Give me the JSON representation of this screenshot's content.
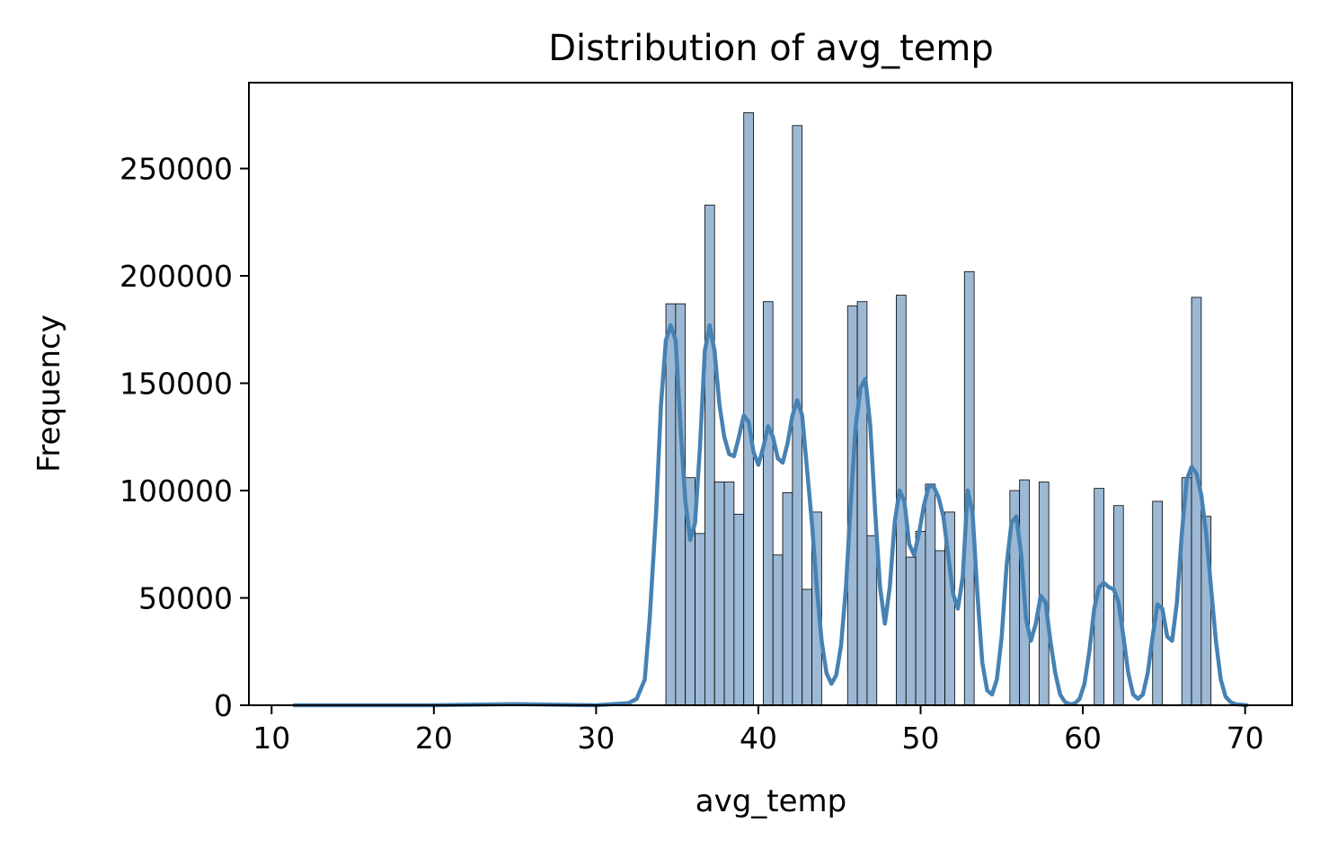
{
  "chart_data": {
    "type": "bar",
    "title": "Distribution of avg_temp",
    "xlabel": "avg_temp",
    "ylabel": "Frequency",
    "xlim": [
      8.6,
      72.9
    ],
    "ylim": [
      0,
      290000
    ],
    "xticks": [
      10,
      20,
      30,
      40,
      50,
      60,
      70
    ],
    "yticks": [
      0,
      50000,
      100000,
      150000,
      200000,
      250000
    ],
    "grid": false,
    "legend": "none",
    "colors": {
      "bar_fill": "#9cb8d4",
      "bar_edge": "#000000",
      "kde_line": "#4682b4"
    },
    "histogram": {
      "bins": [
        {
          "x0": 34.3,
          "x1": 34.9,
          "count": 187000
        },
        {
          "x0": 34.9,
          "x1": 35.5,
          "count": 187000
        },
        {
          "x0": 35.5,
          "x1": 36.1,
          "count": 106000
        },
        {
          "x0": 36.1,
          "x1": 36.7,
          "count": 80000
        },
        {
          "x0": 36.7,
          "x1": 37.3,
          "count": 233000
        },
        {
          "x0": 37.3,
          "x1": 37.9,
          "count": 104000
        },
        {
          "x0": 37.9,
          "x1": 38.5,
          "count": 104000
        },
        {
          "x0": 38.5,
          "x1": 39.1,
          "count": 89000
        },
        {
          "x0": 39.1,
          "x1": 39.7,
          "count": 276000
        },
        {
          "x0": 40.3,
          "x1": 40.9,
          "count": 188000
        },
        {
          "x0": 40.9,
          "x1": 41.5,
          "count": 70000
        },
        {
          "x0": 41.5,
          "x1": 42.1,
          "count": 99000
        },
        {
          "x0": 42.1,
          "x1": 42.7,
          "count": 270000
        },
        {
          "x0": 42.7,
          "x1": 43.3,
          "count": 54000
        },
        {
          "x0": 43.3,
          "x1": 43.9,
          "count": 90000
        },
        {
          "x0": 45.5,
          "x1": 46.1,
          "count": 186000
        },
        {
          "x0": 46.1,
          "x1": 46.7,
          "count": 188000
        },
        {
          "x0": 46.7,
          "x1": 47.3,
          "count": 79000
        },
        {
          "x0": 48.5,
          "x1": 49.1,
          "count": 191000
        },
        {
          "x0": 49.1,
          "x1": 49.7,
          "count": 69000
        },
        {
          "x0": 49.7,
          "x1": 50.3,
          "count": 81000
        },
        {
          "x0": 50.3,
          "x1": 50.9,
          "count": 103000
        },
        {
          "x0": 50.9,
          "x1": 51.5,
          "count": 72000
        },
        {
          "x0": 51.5,
          "x1": 52.1,
          "count": 90000
        },
        {
          "x0": 52.7,
          "x1": 53.3,
          "count": 202000
        },
        {
          "x0": 55.5,
          "x1": 56.1,
          "count": 100000
        },
        {
          "x0": 56.1,
          "x1": 56.7,
          "count": 105000
        },
        {
          "x0": 57.3,
          "x1": 57.9,
          "count": 104000
        },
        {
          "x0": 60.7,
          "x1": 61.3,
          "count": 101000
        },
        {
          "x0": 61.9,
          "x1": 62.5,
          "count": 93000
        },
        {
          "x0": 64.3,
          "x1": 64.9,
          "count": 95000
        },
        {
          "x0": 66.1,
          "x1": 66.7,
          "count": 106000
        },
        {
          "x0": 66.7,
          "x1": 67.3,
          "count": 190000
        },
        {
          "x0": 67.3,
          "x1": 67.9,
          "count": 88000
        }
      ]
    },
    "kde": {
      "x": [
        11.4,
        20,
        25,
        30,
        32,
        32.5,
        33,
        33.3,
        33.7,
        34.0,
        34.3,
        34.6,
        34.9,
        35.2,
        35.5,
        35.8,
        36.1,
        36.4,
        36.7,
        37.0,
        37.3,
        37.6,
        37.9,
        38.2,
        38.5,
        38.8,
        39.1,
        39.4,
        39.7,
        40.0,
        40.3,
        40.6,
        40.9,
        41.2,
        41.5,
        41.8,
        42.1,
        42.4,
        42.7,
        43.0,
        43.3,
        43.6,
        43.9,
        44.2,
        44.5,
        44.8,
        45.1,
        45.4,
        45.7,
        46.0,
        46.3,
        46.6,
        46.9,
        47.2,
        47.5,
        47.8,
        48.1,
        48.4,
        48.7,
        49.0,
        49.3,
        49.6,
        49.9,
        50.2,
        50.5,
        50.8,
        51.1,
        51.4,
        51.7,
        52.0,
        52.3,
        52.6,
        52.9,
        53.2,
        53.5,
        53.8,
        54.1,
        54.4,
        54.7,
        55.0,
        55.3,
        55.6,
        55.9,
        56.2,
        56.5,
        56.8,
        57.1,
        57.4,
        57.7,
        58.0,
        58.3,
        58.6,
        58.9,
        59.2,
        59.5,
        59.8,
        60.1,
        60.4,
        60.7,
        61.0,
        61.3,
        61.6,
        61.9,
        62.2,
        62.5,
        62.8,
        63.1,
        63.4,
        63.7,
        64.0,
        64.3,
        64.6,
        64.9,
        65.2,
        65.5,
        65.8,
        66.1,
        66.4,
        66.7,
        67.0,
        67.3,
        67.6,
        67.9,
        68.2,
        68.5,
        68.8,
        69.1,
        69.4,
        70.1
      ],
      "y": [
        0,
        0,
        500,
        0,
        1000,
        3000,
        12000,
        40000,
        90000,
        140000,
        170000,
        177000,
        170000,
        130000,
        95000,
        77000,
        85000,
        120000,
        165000,
        177000,
        165000,
        140000,
        125000,
        117000,
        116000,
        125000,
        135000,
        132000,
        118000,
        112000,
        120000,
        130000,
        125000,
        115000,
        113000,
        122000,
        135000,
        142000,
        135000,
        110000,
        85000,
        55000,
        30000,
        15000,
        10000,
        14000,
        28000,
        55000,
        95000,
        130000,
        148000,
        152000,
        130000,
        90000,
        55000,
        38000,
        55000,
        85000,
        100000,
        95000,
        75000,
        70000,
        80000,
        93000,
        102000,
        102000,
        97000,
        88000,
        70000,
        52000,
        45000,
        60000,
        100000,
        90000,
        52000,
        20000,
        7000,
        5000,
        12000,
        32000,
        65000,
        85000,
        88000,
        70000,
        40000,
        30000,
        38000,
        51000,
        48000,
        30000,
        15000,
        5000,
        1500,
        500,
        800,
        3000,
        10000,
        25000,
        45000,
        55000,
        57000,
        55000,
        54000,
        48000,
        32000,
        15000,
        5000,
        3000,
        5000,
        15000,
        32000,
        47000,
        45000,
        32000,
        30000,
        48000,
        80000,
        105000,
        111000,
        108000,
        98000,
        80000,
        55000,
        30000,
        12000,
        4000,
        1500,
        500,
        0
      ]
    }
  }
}
